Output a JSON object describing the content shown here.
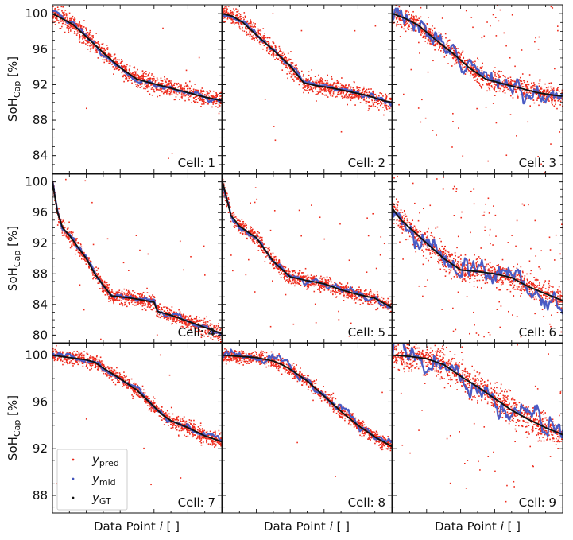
{
  "figure": {
    "ylabel_main": "SoH",
    "ylabel_sub": "Cap",
    "ylabel_unit": "[%]",
    "xlabel_pre": "Data Point ",
    "xlabel_var": "i",
    "xlabel_post": " [ ]"
  },
  "legend": {
    "items": [
      {
        "sym": "y",
        "sub": "pred",
        "color": "#e8291c"
      },
      {
        "sym": "y",
        "sub": "mid",
        "color": "#4455bb"
      },
      {
        "sym": "y",
        "sub": "GT",
        "color": "#111111"
      }
    ]
  },
  "colors": {
    "pred": "#ee2a1b",
    "mid": "#4a5bc4",
    "gt": "#111111"
  },
  "chart_data": [
    {
      "type": "scatter",
      "title": "Cell: 1",
      "xlabel": "",
      "ylabel": "SoH_Cap [%]",
      "ylim": [
        82,
        101
      ],
      "yticks": [
        84,
        88,
        92,
        96,
        100
      ],
      "gt": {
        "x": [
          0,
          0.05,
          0.12,
          0.2,
          0.3,
          0.4,
          0.5,
          0.6,
          0.7,
          0.8,
          0.9,
          1.0
        ],
        "y": [
          100,
          99.5,
          98.8,
          97.4,
          95.6,
          93.9,
          92.6,
          92.1,
          91.6,
          91.1,
          90.6,
          90.2
        ]
      },
      "noise": 0.9,
      "spikes": 0.01,
      "mid_dev": 0.25
    },
    {
      "type": "scatter",
      "title": "Cell: 2",
      "xlabel": "",
      "ylabel": "",
      "ylim": [
        82,
        101
      ],
      "yticks": [
        84,
        88,
        92,
        96,
        100
      ],
      "gt": {
        "x": [
          0,
          0.06,
          0.12,
          0.2,
          0.3,
          0.4,
          0.48,
          0.55,
          0.65,
          0.75,
          0.85,
          0.95,
          1.0
        ],
        "y": [
          100,
          99.7,
          99.0,
          97.6,
          95.9,
          94.1,
          92.2,
          91.9,
          91.6,
          91.2,
          90.8,
          90.2,
          90.0
        ]
      },
      "noise": 0.9,
      "spikes": 0.01,
      "mid_dev": 0.25
    },
    {
      "type": "scatter",
      "title": "Cell: 3",
      "xlabel": "",
      "ylabel": "",
      "ylim": [
        82,
        101
      ],
      "yticks": [
        84,
        88,
        92,
        96,
        100
      ],
      "gt": {
        "x": [
          0,
          0.08,
          0.15,
          0.25,
          0.35,
          0.45,
          0.55,
          0.65,
          0.75,
          0.85,
          0.95,
          1.0
        ],
        "y": [
          100,
          99.4,
          98.7,
          97.1,
          95.6,
          93.9,
          92.6,
          92.1,
          91.6,
          91.1,
          90.8,
          90.7
        ]
      },
      "noise": 1.1,
      "spikes": 0.08,
      "mid_dev": 0.9
    },
    {
      "type": "scatter",
      "title": "Cell: 4",
      "xlabel": "",
      "ylabel": "SoH_Cap [%]",
      "ylim": [
        79,
        101
      ],
      "yticks": [
        80,
        84,
        88,
        92,
        96,
        100
      ],
      "gt": {
        "x": [
          0,
          0.03,
          0.06,
          0.1,
          0.15,
          0.2,
          0.25,
          0.3,
          0.35,
          0.4,
          0.5,
          0.6,
          0.62,
          0.7,
          0.8,
          0.9,
          1.0
        ],
        "y": [
          100,
          96,
          94,
          93,
          91.5,
          90,
          88,
          86.5,
          85.1,
          85.0,
          84.7,
          84.3,
          83.1,
          82.6,
          81.8,
          81.0,
          80.2
        ]
      },
      "noise": 0.9,
      "spikes": 0.03,
      "mid_dev": 0.3
    },
    {
      "type": "scatter",
      "title": "Cell: 5",
      "xlabel": "",
      "ylabel": "",
      "ylim": [
        79,
        101
      ],
      "yticks": [
        80,
        84,
        88,
        92,
        96,
        100
      ],
      "gt": {
        "x": [
          0,
          0.05,
          0.1,
          0.2,
          0.3,
          0.4,
          0.5,
          0.6,
          0.7,
          0.8,
          0.9,
          1.0
        ],
        "y": [
          100,
          95.6,
          94.2,
          92.7,
          89.6,
          87.6,
          87.1,
          86.7,
          85.9,
          85.3,
          84.8,
          83.6
        ]
      },
      "noise": 0.9,
      "spikes": 0.04,
      "mid_dev": 0.35
    },
    {
      "type": "scatter",
      "title": "Cell: 6",
      "xlabel": "",
      "ylabel": "",
      "ylim": [
        79,
        101
      ],
      "yticks": [
        80,
        84,
        88,
        92,
        96,
        100
      ],
      "gt": {
        "x": [
          0,
          0.05,
          0.1,
          0.2,
          0.3,
          0.4,
          0.5,
          0.6,
          0.7,
          0.8,
          0.9,
          1.0
        ],
        "y": [
          96.5,
          95.0,
          94.0,
          92.0,
          90.0,
          88.5,
          88.3,
          88.0,
          87.5,
          86.3,
          85.4,
          84.5
        ]
      },
      "noise": 1.4,
      "spikes": 0.12,
      "mid_dev": 1.3
    },
    {
      "type": "scatter",
      "title": "Cell: 7",
      "xlabel": "Data Point i [ ]",
      "ylabel": "SoH_Cap [%]",
      "ylim": [
        86.5,
        101
      ],
      "yticks": [
        88,
        92,
        96,
        100
      ],
      "gt": {
        "x": [
          0,
          0.1,
          0.2,
          0.25,
          0.3,
          0.4,
          0.5,
          0.6,
          0.65,
          0.7,
          0.8,
          0.9,
          1.0
        ],
        "y": [
          100,
          99.8,
          99.6,
          99.4,
          98.9,
          98.0,
          97.0,
          95.6,
          94.9,
          94.4,
          93.8,
          93.1,
          92.6
        ]
      },
      "noise": 0.55,
      "spikes": 0.01,
      "mid_dev": 0.2
    },
    {
      "type": "scatter",
      "title": "Cell: 8",
      "xlabel": "Data Point i [ ]",
      "ylabel": "",
      "ylim": [
        86.5,
        101
      ],
      "yticks": [
        88,
        92,
        96,
        100
      ],
      "gt": {
        "x": [
          0,
          0.1,
          0.2,
          0.3,
          0.35,
          0.4,
          0.5,
          0.6,
          0.7,
          0.8,
          0.9,
          1.0
        ],
        "y": [
          100,
          99.9,
          99.8,
          99.5,
          99.2,
          98.8,
          97.8,
          96.5,
          95.2,
          94.0,
          93.0,
          92.2
        ]
      },
      "noise": 0.5,
      "spikes": 0.01,
      "mid_dev": 0.3
    },
    {
      "type": "scatter",
      "title": "Cell: 9",
      "xlabel": "Data Point i [ ]",
      "ylabel": "",
      "ylim": [
        86.5,
        101
      ],
      "yticks": [
        88,
        92,
        96,
        100
      ],
      "gt": {
        "x": [
          0,
          0.1,
          0.2,
          0.3,
          0.4,
          0.5,
          0.6,
          0.7,
          0.8,
          0.9,
          1.0
        ],
        "y": [
          100,
          99.9,
          99.7,
          99.2,
          98.2,
          97.3,
          96.3,
          95.3,
          94.5,
          93.8,
          93.2
        ]
      },
      "noise": 1.2,
      "spikes": 0.07,
      "mid_dev": 0.8
    }
  ]
}
